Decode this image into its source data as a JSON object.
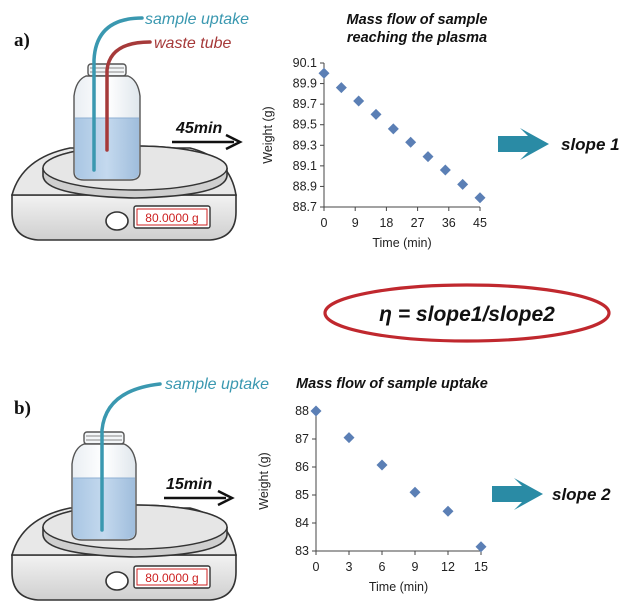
{
  "panel_a": {
    "label": "a)",
    "callout_uptake": "sample uptake",
    "callout_waste": "waste tube",
    "duration": "45min",
    "scale_display": "80.0000 g",
    "result": "slope 1"
  },
  "panel_b": {
    "label": "b)",
    "callout_uptake": "sample uptake",
    "duration": "15min",
    "scale_display": "80.0000 g",
    "result": "slope 2"
  },
  "formula": "η = slope1/slope2",
  "colors": {
    "uptake_tube": "#3a98b0",
    "waste_tube": "#a63a3a",
    "marker": "#5b7fb5",
    "arrow": "#2a8ba5",
    "ellipse": "#c0282e",
    "liquid": "#b6cfe7"
  },
  "chart_data": [
    {
      "type": "scatter",
      "title": "Mass flow of sample reaching the plasma",
      "title_lines": [
        "Mass flow of sample",
        "reaching the plasma"
      ],
      "xlabel": "Time (min)",
      "ylabel": "Weight (g)",
      "x": [
        0,
        5,
        10,
        15,
        20,
        25,
        30,
        35,
        40,
        45
      ],
      "y": [
        90.0,
        89.86,
        89.73,
        89.6,
        89.46,
        89.33,
        89.19,
        89.06,
        88.92,
        88.79
      ],
      "xticks": [
        0,
        9,
        18,
        27,
        36,
        45
      ],
      "xtick_labels": [
        "0",
        "9",
        "18",
        "27",
        "36",
        "45"
      ],
      "yticks": [
        88.7,
        88.9,
        89.1,
        89.3,
        89.5,
        89.7,
        89.9,
        90.1
      ],
      "ytick_labels": [
        "88.7",
        "88.9",
        "89.1",
        "89.3",
        "89.5",
        "89.7",
        "89.9",
        "90.1"
      ],
      "xlim": [
        0,
        45
      ],
      "ylim": [
        88.7,
        90.1
      ],
      "grid": false,
      "marker": "diamond"
    },
    {
      "type": "scatter",
      "title": "Mass flow of sample uptake",
      "title_lines": [
        "Mass flow of sample uptake"
      ],
      "xlabel": "Time (min)",
      "ylabel": "Weight (g)",
      "x": [
        0,
        3,
        6,
        9,
        12,
        15
      ],
      "y": [
        88.0,
        87.05,
        86.07,
        85.1,
        84.42,
        83.15
      ],
      "xticks": [
        0,
        3,
        6,
        9,
        12,
        15
      ],
      "xtick_labels": [
        "0",
        "3",
        "6",
        "9",
        "12",
        "15"
      ],
      "yticks": [
        83,
        84,
        85,
        86,
        87,
        88
      ],
      "ytick_labels": [
        "83",
        "84",
        "85",
        "86",
        "87",
        "88"
      ],
      "xlim": [
        0,
        15
      ],
      "ylim": [
        83,
        88
      ],
      "grid": false,
      "marker": "diamond"
    }
  ]
}
